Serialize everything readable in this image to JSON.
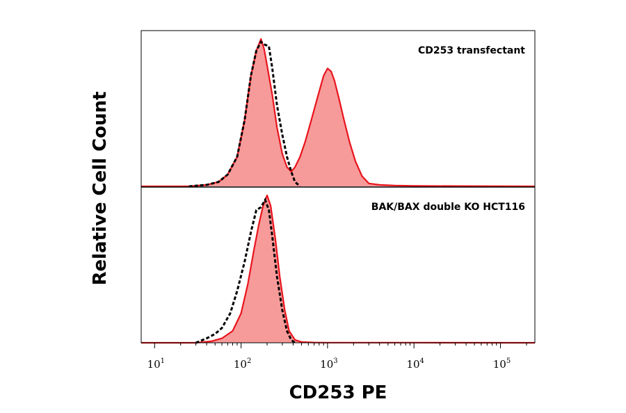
{
  "chart_data": {
    "type": "area",
    "xscale": "log",
    "xlabel": "CD253 PE",
    "ylabel": "Relative Cell Count",
    "xlim": [
      7,
      250000
    ],
    "xticks": [
      {
        "base": "10",
        "exp": "1",
        "value": 10
      },
      {
        "base": "10",
        "exp": "2",
        "value": 100
      },
      {
        "base": "10",
        "exp": "3",
        "value": 1000
      },
      {
        "base": "10",
        "exp": "4",
        "value": 10000
      },
      {
        "base": "10",
        "exp": "5",
        "value": 100000
      }
    ],
    "colors": {
      "fill": "#f79a9a",
      "line": "#e8141c",
      "dashed": "#000000"
    },
    "panels": [
      {
        "label": "CD253 transfectant",
        "filled": {
          "x": [
            7,
            25,
            40,
            55,
            70,
            90,
            110,
            130,
            150,
            170,
            185,
            200,
            230,
            260,
            300,
            340,
            380,
            420,
            480,
            550,
            650,
            780,
            900,
            1000,
            1100,
            1200,
            1350,
            1550,
            1800,
            2100,
            2500,
            3000,
            4000,
            6000,
            10000,
            30000,
            250000
          ],
          "y": [
            0,
            0,
            0.01,
            0.03,
            0.08,
            0.2,
            0.45,
            0.75,
            0.92,
            1.0,
            0.93,
            0.82,
            0.62,
            0.4,
            0.22,
            0.13,
            0.1,
            0.13,
            0.2,
            0.3,
            0.45,
            0.62,
            0.75,
            0.8,
            0.78,
            0.72,
            0.6,
            0.45,
            0.3,
            0.17,
            0.07,
            0.02,
            0.01,
            0.005,
            0.003,
            0.002,
            0
          ]
        },
        "control": {
          "x": [
            25,
            40,
            55,
            70,
            90,
            110,
            130,
            150,
            170,
            190,
            210,
            230,
            260,
            300,
            340,
            380,
            420,
            480
          ],
          "y": [
            0,
            0.01,
            0.03,
            0.08,
            0.2,
            0.45,
            0.75,
            0.92,
            0.98,
            0.96,
            0.95,
            0.8,
            0.55,
            0.35,
            0.2,
            0.1,
            0.03,
            0
          ]
        }
      },
      {
        "label": "BAK/BAX double KO HCT116",
        "filled": {
          "x": [
            7,
            30,
            45,
            60,
            80,
            100,
            120,
            140,
            160,
            180,
            200,
            220,
            250,
            280,
            320,
            360,
            420,
            500,
            700,
            1000,
            10000,
            250000
          ],
          "y": [
            0,
            0,
            0.01,
            0.03,
            0.08,
            0.2,
            0.4,
            0.62,
            0.8,
            0.93,
            1.0,
            0.93,
            0.7,
            0.45,
            0.22,
            0.08,
            0.02,
            0.005,
            0.002,
            0.001,
            0.001,
            0
          ]
        },
        "control": {
          "x": [
            30,
            40,
            50,
            60,
            75,
            90,
            110,
            130,
            150,
            170,
            190,
            210,
            230,
            260,
            300,
            340,
            380,
            420
          ],
          "y": [
            0,
            0.03,
            0.06,
            0.1,
            0.2,
            0.35,
            0.55,
            0.75,
            0.9,
            0.92,
            0.97,
            0.9,
            0.72,
            0.45,
            0.22,
            0.08,
            0.02,
            0
          ]
        }
      }
    ]
  }
}
